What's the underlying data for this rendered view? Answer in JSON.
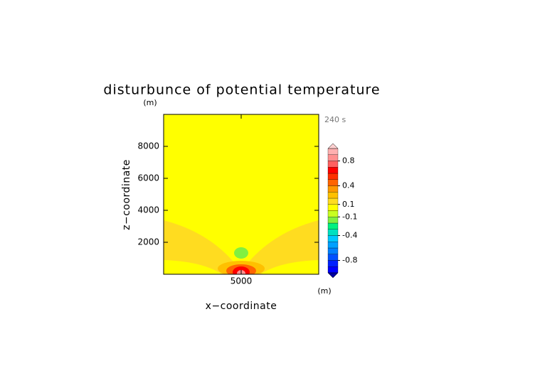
{
  "chart_data": {
    "type": "contour",
    "title": "disturbunce of potential temperature",
    "time_label": "240 s",
    "x_label": "x−coordinate",
    "x_unit": "(m)",
    "y_label": "z−coordinate",
    "y_unit": "(m)",
    "xlim": [
      0,
      10000
    ],
    "xticks": [
      5000
    ],
    "ylim": [
      0,
      10000
    ],
    "yticks": [
      2000,
      4000,
      6000,
      8000
    ],
    "colorbar": {
      "levels": [
        -1.0,
        -0.9,
        -0.8,
        -0.7,
        -0.6,
        -0.5,
        -0.4,
        -0.3,
        -0.2,
        -0.1,
        0,
        0.1,
        0.2,
        0.3,
        0.4,
        0.5,
        0.6,
        0.7,
        0.8,
        0.9,
        1.0
      ],
      "colors": [
        "#0000a0",
        "#0000ff",
        "#0020ff",
        "#0050ff",
        "#0080ff",
        "#00a0ff",
        "#00c8ff",
        "#00e0c0",
        "#00f080",
        "#80f040",
        "#c8ff20",
        "#ffff00",
        "#ffdc20",
        "#ffc000",
        "#ff9800",
        "#ff6400",
        "#ff3000",
        "#ff0000",
        "#ff6060",
        "#ff9090",
        "#ffb0b0",
        "#ffd0d0"
      ],
      "ticks": [
        0.8,
        0.4,
        0.1,
        -0.1,
        -0.4,
        -0.8
      ]
    }
  }
}
